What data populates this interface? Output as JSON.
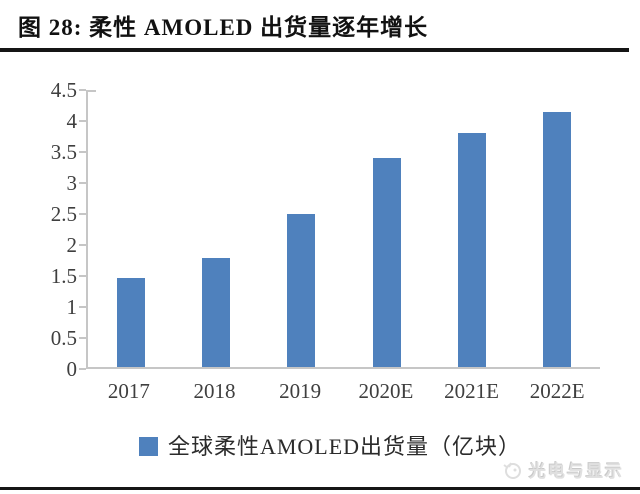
{
  "figure": {
    "title": "图 28: 柔性 AMOLED 出货量逐年增长"
  },
  "chart_data": {
    "type": "bar",
    "categories": [
      "2017",
      "2018",
      "2019",
      "2020E",
      "2021E",
      "2022E"
    ],
    "values": [
      1.45,
      1.77,
      2.48,
      3.39,
      3.8,
      4.14
    ],
    "title": "图 28: 柔性 AMOLED 出货量逐年增长",
    "xlabel": "",
    "ylabel": "",
    "ylim": [
      0,
      4.5
    ],
    "ytick_step": 0.5,
    "ytick_labels": [
      "0",
      "0.5",
      "1",
      "1.5",
      "2",
      "2.5",
      "3",
      "3.5",
      "4",
      "4.5"
    ],
    "grid": false,
    "legend_position": "bottom",
    "legend_label": "全球柔性AMOLED出货量（亿块）",
    "bar_color": "#4f81bd"
  },
  "watermark": {
    "icon": "logo-icon",
    "text": "光电与显示"
  },
  "colors": {
    "bar": "#4f81bd",
    "axis": "#c6c6c6",
    "tick_label": "#3f3f3f",
    "rule": "#151515",
    "watermark": "#e0e0e0"
  }
}
